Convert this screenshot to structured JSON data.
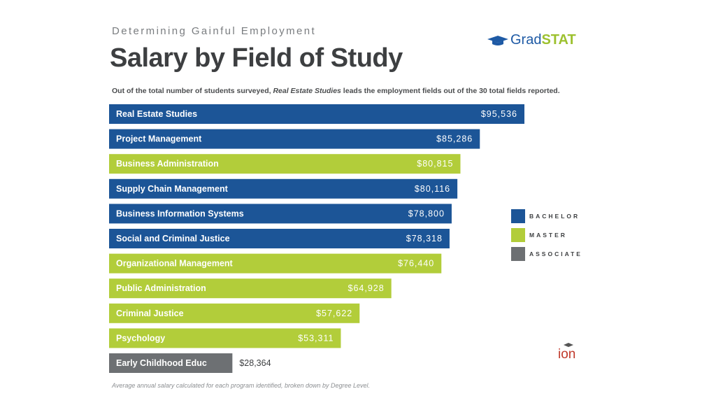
{
  "header": {
    "kicker": "Determining Gainful Employment",
    "title": "Salary by Field of Study",
    "subtitle_pre": "Out of the total number of students surveyed, ",
    "subtitle_em": "Real Estate Studies",
    "subtitle_post": " leads the employment fields out of the 30 total fields reported."
  },
  "logo": {
    "grad": "Grad",
    "stat": "STAT"
  },
  "ion_logo": "ion",
  "footnote": "Average annual salary calculated for each program identified, broken down by Degree Level.",
  "colors": {
    "bachelor": "#1c5597",
    "master": "#b2cd3a",
    "associate": "#6d7073"
  },
  "chart_data": {
    "type": "bar",
    "orientation": "horizontal",
    "categories": [
      "Real Estate Studies",
      "Project Management",
      "Business Administration",
      "Supply Chain Management",
      "Business Information Systems",
      "Social and Criminal Justice",
      "Organizational Management",
      "Public Administration",
      "Criminal Justice",
      "Psychology",
      "Early Childhood Educ"
    ],
    "values": [
      95536,
      85286,
      80815,
      80116,
      78800,
      78318,
      76440,
      64928,
      57622,
      53311,
      28364
    ],
    "value_labels": [
      "$95,536",
      "$85,286",
      "$80,815",
      "$80,116",
      "$78,800",
      "$78,318",
      "$76,440",
      "$64,928",
      "$57,622",
      "$53,311",
      "$28,364"
    ],
    "degree": [
      "BACHELOR",
      "BACHELOR",
      "MASTER",
      "BACHELOR",
      "BACHELOR",
      "BACHELOR",
      "MASTER",
      "MASTER",
      "MASTER",
      "MASTER",
      "ASSOCIATE"
    ],
    "legend": [
      "BACHELOR",
      "MASTER",
      "ASSOCIATE"
    ],
    "legend_position": "right",
    "grid": false
  }
}
